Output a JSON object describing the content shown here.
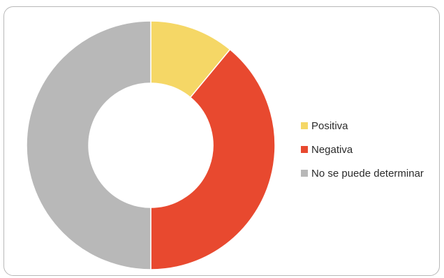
{
  "chart_data": {
    "type": "pie",
    "donut": true,
    "categories": [
      "Positiva",
      "Negativa",
      "No se puede determinar"
    ],
    "values": [
      11,
      39,
      50
    ],
    "colors": [
      "#f5d766",
      "#e8492f",
      "#b8b8b8"
    ],
    "legend_position": "right"
  }
}
